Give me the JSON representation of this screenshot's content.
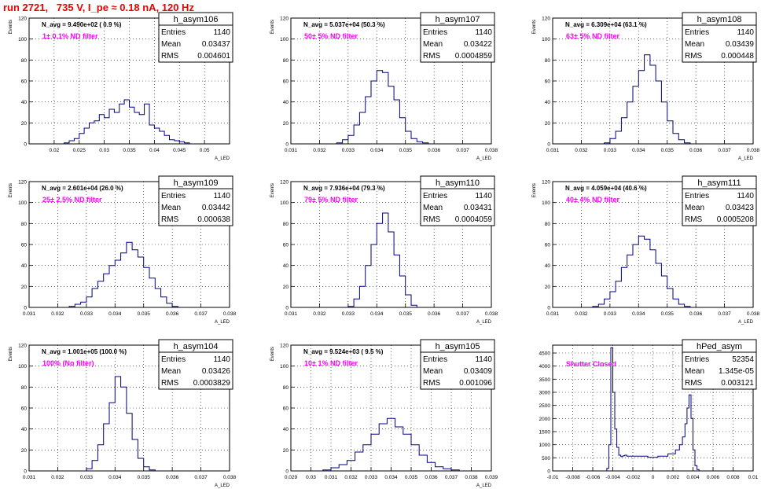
{
  "page_title": "run 2721,   735 V, I_pe ≈ 0.18 nA, 120 Hz",
  "colors": {
    "frame": "#000000",
    "grid": "#000000",
    "hist": "#000080",
    "title_text": "#ee0000",
    "filter_text": "#ff00ff"
  },
  "stats_labels": {
    "entries": "Entries",
    "mean": "Mean",
    "rms": "RMS"
  },
  "chart_data": [
    {
      "type": "histogram",
      "name": "h_asym106",
      "navg": "N_avg = 9.490e+02 ( 0.9 %)",
      "filter": "1± 0.1% ND filter",
      "entries": "1140",
      "mean": "0.03437",
      "rms": "0.004601",
      "xlabel": "A_LED",
      "ylabel": "Events",
      "xlim": [
        0.015,
        0.055
      ],
      "ylim": [
        0,
        120
      ],
      "xticks": [
        0.02,
        0.025,
        0.03,
        0.035,
        0.04,
        0.045,
        0.05
      ],
      "xtick_labels": [
        "0.02",
        "0.025",
        "0.03",
        "0.035",
        "0.04",
        "0.045",
        "0.05"
      ],
      "yticks": [
        0,
        20,
        40,
        60,
        80,
        100,
        120
      ],
      "x": [
        0.0225,
        0.0235,
        0.0245,
        0.0255,
        0.0265,
        0.0275,
        0.0285,
        0.0295,
        0.0305,
        0.0315,
        0.0325,
        0.0335,
        0.0345,
        0.0355,
        0.0365,
        0.0375,
        0.0385,
        0.0395,
        0.0405,
        0.0415,
        0.0425,
        0.0435,
        0.0445,
        0.0455,
        0.0465
      ],
      "values": [
        1,
        3,
        5,
        10,
        15,
        20,
        22,
        28,
        25,
        33,
        30,
        38,
        42,
        35,
        30,
        28,
        38,
        18,
        15,
        12,
        8,
        4,
        3,
        2,
        1
      ]
    },
    {
      "type": "histogram",
      "name": "h_asym107",
      "navg": "N_avg = 5.037e+04 (50.3 %)",
      "filter": "50± 5% ND filter",
      "entries": "1140",
      "mean": "0.03422",
      "rms": "0.0004859",
      "xlabel": "A_LED",
      "ylabel": "Events",
      "xlim": [
        0.031,
        0.038
      ],
      "ylim": [
        0,
        120
      ],
      "xticks": [
        0.031,
        0.032,
        0.033,
        0.034,
        0.035,
        0.036,
        0.037,
        0.038
      ],
      "xtick_labels": [
        "0.031",
        "0.032",
        "0.033",
        "0.034",
        "0.035",
        "0.036",
        "0.037",
        "0.038"
      ],
      "yticks": [
        0,
        20,
        40,
        60,
        80,
        100,
        120
      ],
      "x": [
        0.0327,
        0.0329,
        0.0331,
        0.0333,
        0.0335,
        0.0337,
        0.0339,
        0.0341,
        0.0343,
        0.0345,
        0.0347,
        0.0349,
        0.0351,
        0.0353,
        0.0355,
        0.0357
      ],
      "values": [
        1,
        4,
        8,
        18,
        30,
        45,
        60,
        70,
        68,
        55,
        42,
        25,
        12,
        5,
        2,
        1
      ]
    },
    {
      "type": "histogram",
      "name": "h_asym108",
      "navg": "N_avg = 6.309e+04 (63.1 %)",
      "filter": "63± 5% ND filter",
      "entries": "1140",
      "mean": "0.03439",
      "rms": "0.000448",
      "xlabel": "A_LED",
      "ylabel": "Events",
      "xlim": [
        0.031,
        0.038
      ],
      "ylim": [
        0,
        120
      ],
      "xticks": [
        0.031,
        0.032,
        0.033,
        0.034,
        0.035,
        0.036,
        0.037,
        0.038
      ],
      "xtick_labels": [
        "0.031",
        "0.032",
        "0.033",
        "0.034",
        "0.035",
        "0.036",
        "0.037",
        "0.038"
      ],
      "yticks": [
        0,
        20,
        40,
        60,
        80,
        100,
        120
      ],
      "x": [
        0.0329,
        0.0331,
        0.0333,
        0.0335,
        0.0337,
        0.0339,
        0.0341,
        0.0343,
        0.0345,
        0.0347,
        0.0349,
        0.0351,
        0.0353,
        0.0355,
        0.0357
      ],
      "values": [
        1,
        5,
        12,
        25,
        40,
        55,
        70,
        85,
        75,
        60,
        40,
        22,
        10,
        4,
        1
      ]
    },
    {
      "type": "histogram",
      "name": "h_asym109",
      "navg": "N_avg = 2.601e+04 (26.0 %)",
      "filter": "25± 2.5% ND filter",
      "entries": "1140",
      "mean": "0.03442",
      "rms": "0.000638",
      "xlabel": "A_LED",
      "ylabel": "Events",
      "xlim": [
        0.031,
        0.038
      ],
      "ylim": [
        0,
        120
      ],
      "xticks": [
        0.031,
        0.032,
        0.033,
        0.034,
        0.035,
        0.036,
        0.037,
        0.038
      ],
      "xtick_labels": [
        "0.031",
        "0.032",
        "0.033",
        "0.034",
        "0.035",
        "0.036",
        "0.037",
        "0.038"
      ],
      "yticks": [
        0,
        20,
        40,
        60,
        80,
        100,
        120
      ],
      "x": [
        0.0325,
        0.0327,
        0.0329,
        0.0331,
        0.0333,
        0.0335,
        0.0337,
        0.0339,
        0.0341,
        0.0343,
        0.0345,
        0.0347,
        0.0349,
        0.0351,
        0.0353,
        0.0355,
        0.0357,
        0.0359,
        0.0361
      ],
      "values": [
        1,
        3,
        5,
        10,
        18,
        25,
        32,
        40,
        45,
        52,
        62,
        55,
        48,
        38,
        28,
        18,
        10,
        4,
        1
      ]
    },
    {
      "type": "histogram",
      "name": "h_asym110",
      "navg": "N_avg = 7.936e+04 (79.3 %)",
      "filter": "79± 5% ND filter",
      "entries": "1140",
      "mean": "0.03431",
      "rms": "0.0004059",
      "xlabel": "A_LED",
      "ylabel": "Events",
      "xlim": [
        0.031,
        0.038
      ],
      "ylim": [
        0,
        120
      ],
      "xticks": [
        0.031,
        0.032,
        0.033,
        0.034,
        0.035,
        0.036,
        0.037,
        0.038
      ],
      "xtick_labels": [
        "0.031",
        "0.032",
        "0.033",
        "0.034",
        "0.035",
        "0.036",
        "0.037",
        "0.038"
      ],
      "yticks": [
        0,
        20,
        40,
        60,
        80,
        100,
        120
      ],
      "x": [
        0.0331,
        0.0333,
        0.0335,
        0.0337,
        0.0339,
        0.0341,
        0.0343,
        0.0345,
        0.0347,
        0.0349,
        0.0351,
        0.0353
      ],
      "values": [
        1,
        8,
        20,
        40,
        60,
        80,
        90,
        72,
        50,
        30,
        12,
        2
      ]
    },
    {
      "type": "histogram",
      "name": "h_asym111",
      "navg": "N_avg = 4.059e+04 (40.6 %)",
      "filter": "40± 4% ND filter",
      "entries": "1140",
      "mean": "0.03423",
      "rms": "0.0005208",
      "xlabel": "A_LED",
      "ylabel": "Events",
      "xlim": [
        0.031,
        0.038
      ],
      "ylim": [
        0,
        120
      ],
      "xticks": [
        0.031,
        0.032,
        0.033,
        0.034,
        0.035,
        0.036,
        0.037,
        0.038
      ],
      "xtick_labels": [
        "0.031",
        "0.032",
        "0.033",
        "0.034",
        "0.035",
        "0.036",
        "0.037",
        "0.038"
      ],
      "yticks": [
        0,
        20,
        40,
        60,
        80,
        100,
        120
      ],
      "x": [
        0.0325,
        0.0327,
        0.0329,
        0.0331,
        0.0333,
        0.0335,
        0.0337,
        0.0339,
        0.0341,
        0.0343,
        0.0345,
        0.0347,
        0.0349,
        0.0351,
        0.0353,
        0.0355,
        0.0357
      ],
      "values": [
        1,
        3,
        8,
        15,
        25,
        38,
        50,
        60,
        68,
        65,
        55,
        42,
        30,
        18,
        8,
        3,
        1
      ]
    },
    {
      "type": "histogram",
      "name": "h_asym104",
      "navg": "N_avg = 1.001e+05 (100.0 %)",
      "filter": "100% (No filter)",
      "entries": "1140",
      "mean": "0.03426",
      "rms": "0.0003829",
      "xlabel": "A_LED",
      "ylabel": "Events",
      "xlim": [
        0.031,
        0.038
      ],
      "ylim": [
        0,
        120
      ],
      "xticks": [
        0.031,
        0.032,
        0.033,
        0.034,
        0.035,
        0.036,
        0.037,
        0.038
      ],
      "xtick_labels": [
        "0.031",
        "0.032",
        "0.033",
        "0.034",
        "0.035",
        "0.036",
        "0.037",
        "0.038"
      ],
      "yticks": [
        0,
        20,
        40,
        60,
        80,
        100,
        120
      ],
      "x": [
        0.0331,
        0.0333,
        0.0335,
        0.0337,
        0.0339,
        0.0341,
        0.0343,
        0.0345,
        0.0347,
        0.0349,
        0.0351,
        0.0353
      ],
      "values": [
        2,
        10,
        25,
        45,
        65,
        90,
        80,
        55,
        30,
        12,
        4,
        1
      ]
    },
    {
      "type": "histogram",
      "name": "h_asym105",
      "navg": "N_avg = 9.524e+03 ( 9.5 %)",
      "filter": "10± 1% ND filter",
      "entries": "1140",
      "mean": "0.03409",
      "rms": "0.001096",
      "xlabel": "A_LED",
      "ylabel": "Events",
      "xlim": [
        0.029,
        0.039
      ],
      "ylim": [
        0,
        120
      ],
      "xticks": [
        0.029,
        0.03,
        0.031,
        0.032,
        0.033,
        0.034,
        0.035,
        0.036,
        0.037,
        0.038,
        0.039
      ],
      "xtick_labels": [
        "0.029",
        "0.03",
        "0.031",
        "0.032",
        "0.033",
        "0.034",
        "0.035",
        "0.036",
        "0.037",
        "0.038",
        "0.039"
      ],
      "yticks": [
        0,
        20,
        40,
        60,
        80,
        100,
        120
      ],
      "x": [
        0.0308,
        0.0312,
        0.0316,
        0.032,
        0.0324,
        0.0328,
        0.0332,
        0.0336,
        0.034,
        0.0344,
        0.0348,
        0.0352,
        0.0356,
        0.036,
        0.0364,
        0.0368,
        0.0372
      ],
      "values": [
        1,
        3,
        6,
        10,
        18,
        25,
        35,
        45,
        50,
        42,
        35,
        25,
        15,
        8,
        4,
        2,
        1
      ]
    },
    {
      "type": "histogram",
      "name": "hPed_asym",
      "navg": "",
      "filter": "Shutter Closed",
      "entries": "52354",
      "mean": "1.345e-05",
      "rms": "0.003121",
      "xlabel": "",
      "ylabel": "",
      "xlim": [
        -0.01,
        0.01
      ],
      "ylim": [
        0,
        4800
      ],
      "xticks": [
        -0.01,
        -0.008,
        -0.006,
        -0.004,
        -0.002,
        0,
        0.002,
        0.004,
        0.006,
        0.008,
        0.01
      ],
      "xtick_labels": [
        "-0.01",
        "-0.008",
        "-0.006",
        "-0.004",
        "-0.002",
        "0",
        "0.002",
        "0.004",
        "0.006",
        "0.008",
        "0.01"
      ],
      "yticks": [
        0,
        500,
        1000,
        1500,
        2000,
        2500,
        3000,
        3500,
        4000,
        4500
      ],
      "x": [
        -0.0045,
        -0.0043,
        -0.0041,
        -0.0039,
        -0.0037,
        -0.0035,
        -0.0033,
        -0.0031,
        -0.0029,
        -0.0027,
        -0.0025,
        -0.002,
        -0.001,
        0.0,
        0.001,
        0.002,
        0.0025,
        0.0028,
        0.0031,
        0.0033,
        0.0035,
        0.0037,
        0.0039,
        0.0041,
        0.0043,
        0.0045
      ],
      "values": [
        100,
        1000,
        4700,
        3000,
        1600,
        900,
        600,
        550,
        580,
        600,
        560,
        560,
        560,
        520,
        560,
        650,
        800,
        1000,
        1300,
        1800,
        2400,
        2900,
        2000,
        800,
        200,
        50
      ]
    }
  ]
}
